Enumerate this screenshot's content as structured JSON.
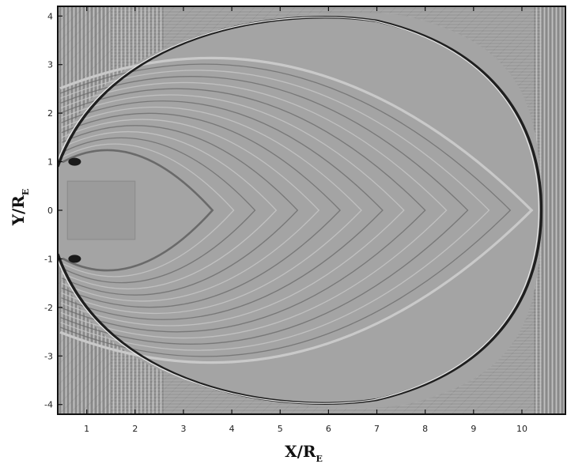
{
  "chart_data": {
    "type": "heatmap",
    "title": "",
    "xlabel": "X/R",
    "xlabel_subscript": "E",
    "ylabel": "Y/R",
    "ylabel_subscript": "E",
    "xlim": [
      0.4,
      10.9
    ],
    "ylim": [
      -4.2,
      4.2
    ],
    "x_ticks": [
      1,
      2,
      3,
      4,
      5,
      6,
      7,
      8,
      9,
      10
    ],
    "y_ticks": [
      -4,
      -3,
      -2,
      -1,
      0,
      1,
      2,
      3,
      4
    ],
    "grid": false,
    "legend": "none",
    "colormap": "grayscale",
    "background_gray": "#9d9d9d",
    "features": {
      "outer_front_nose_x": 10.4,
      "outer_front_apex_x": 0.4,
      "outer_front_half_height_at_nose": 4.1,
      "inner_front_nose_x": 3.6,
      "inner_front_apex_x": 0.5,
      "inner_front_half_height": 1.6,
      "obstacle_x_range": [
        0.6,
        2.0
      ],
      "obstacle_y_range": [
        -0.6,
        0.6
      ]
    }
  }
}
